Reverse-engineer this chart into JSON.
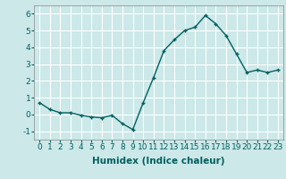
{
  "x": [
    0,
    1,
    2,
    3,
    4,
    5,
    6,
    7,
    8,
    9,
    10,
    11,
    12,
    13,
    14,
    15,
    16,
    17,
    18,
    19,
    20,
    21,
    22,
    23
  ],
  "y": [
    0.7,
    0.3,
    0.1,
    0.1,
    -0.05,
    -0.15,
    -0.2,
    -0.05,
    -0.55,
    -0.9,
    0.7,
    2.2,
    3.8,
    4.45,
    5.0,
    5.2,
    5.9,
    5.4,
    4.7,
    3.6,
    2.5,
    2.65,
    2.5,
    2.65
  ],
  "xlabel": "Humidex (Indice chaleur)",
  "ylim": [
    -1.5,
    6.5
  ],
  "xlim": [
    -0.5,
    23.5
  ],
  "yticks": [
    -1,
    0,
    1,
    2,
    3,
    4,
    5,
    6
  ],
  "xticks": [
    0,
    1,
    2,
    3,
    4,
    5,
    6,
    7,
    8,
    9,
    10,
    11,
    12,
    13,
    14,
    15,
    16,
    17,
    18,
    19,
    20,
    21,
    22,
    23
  ],
  "line_color": "#006060",
  "marker": "+",
  "bg_color": "#cce8e8",
  "grid_color": "#ffffff",
  "label_fontsize": 7.5,
  "tick_fontsize": 6.5
}
